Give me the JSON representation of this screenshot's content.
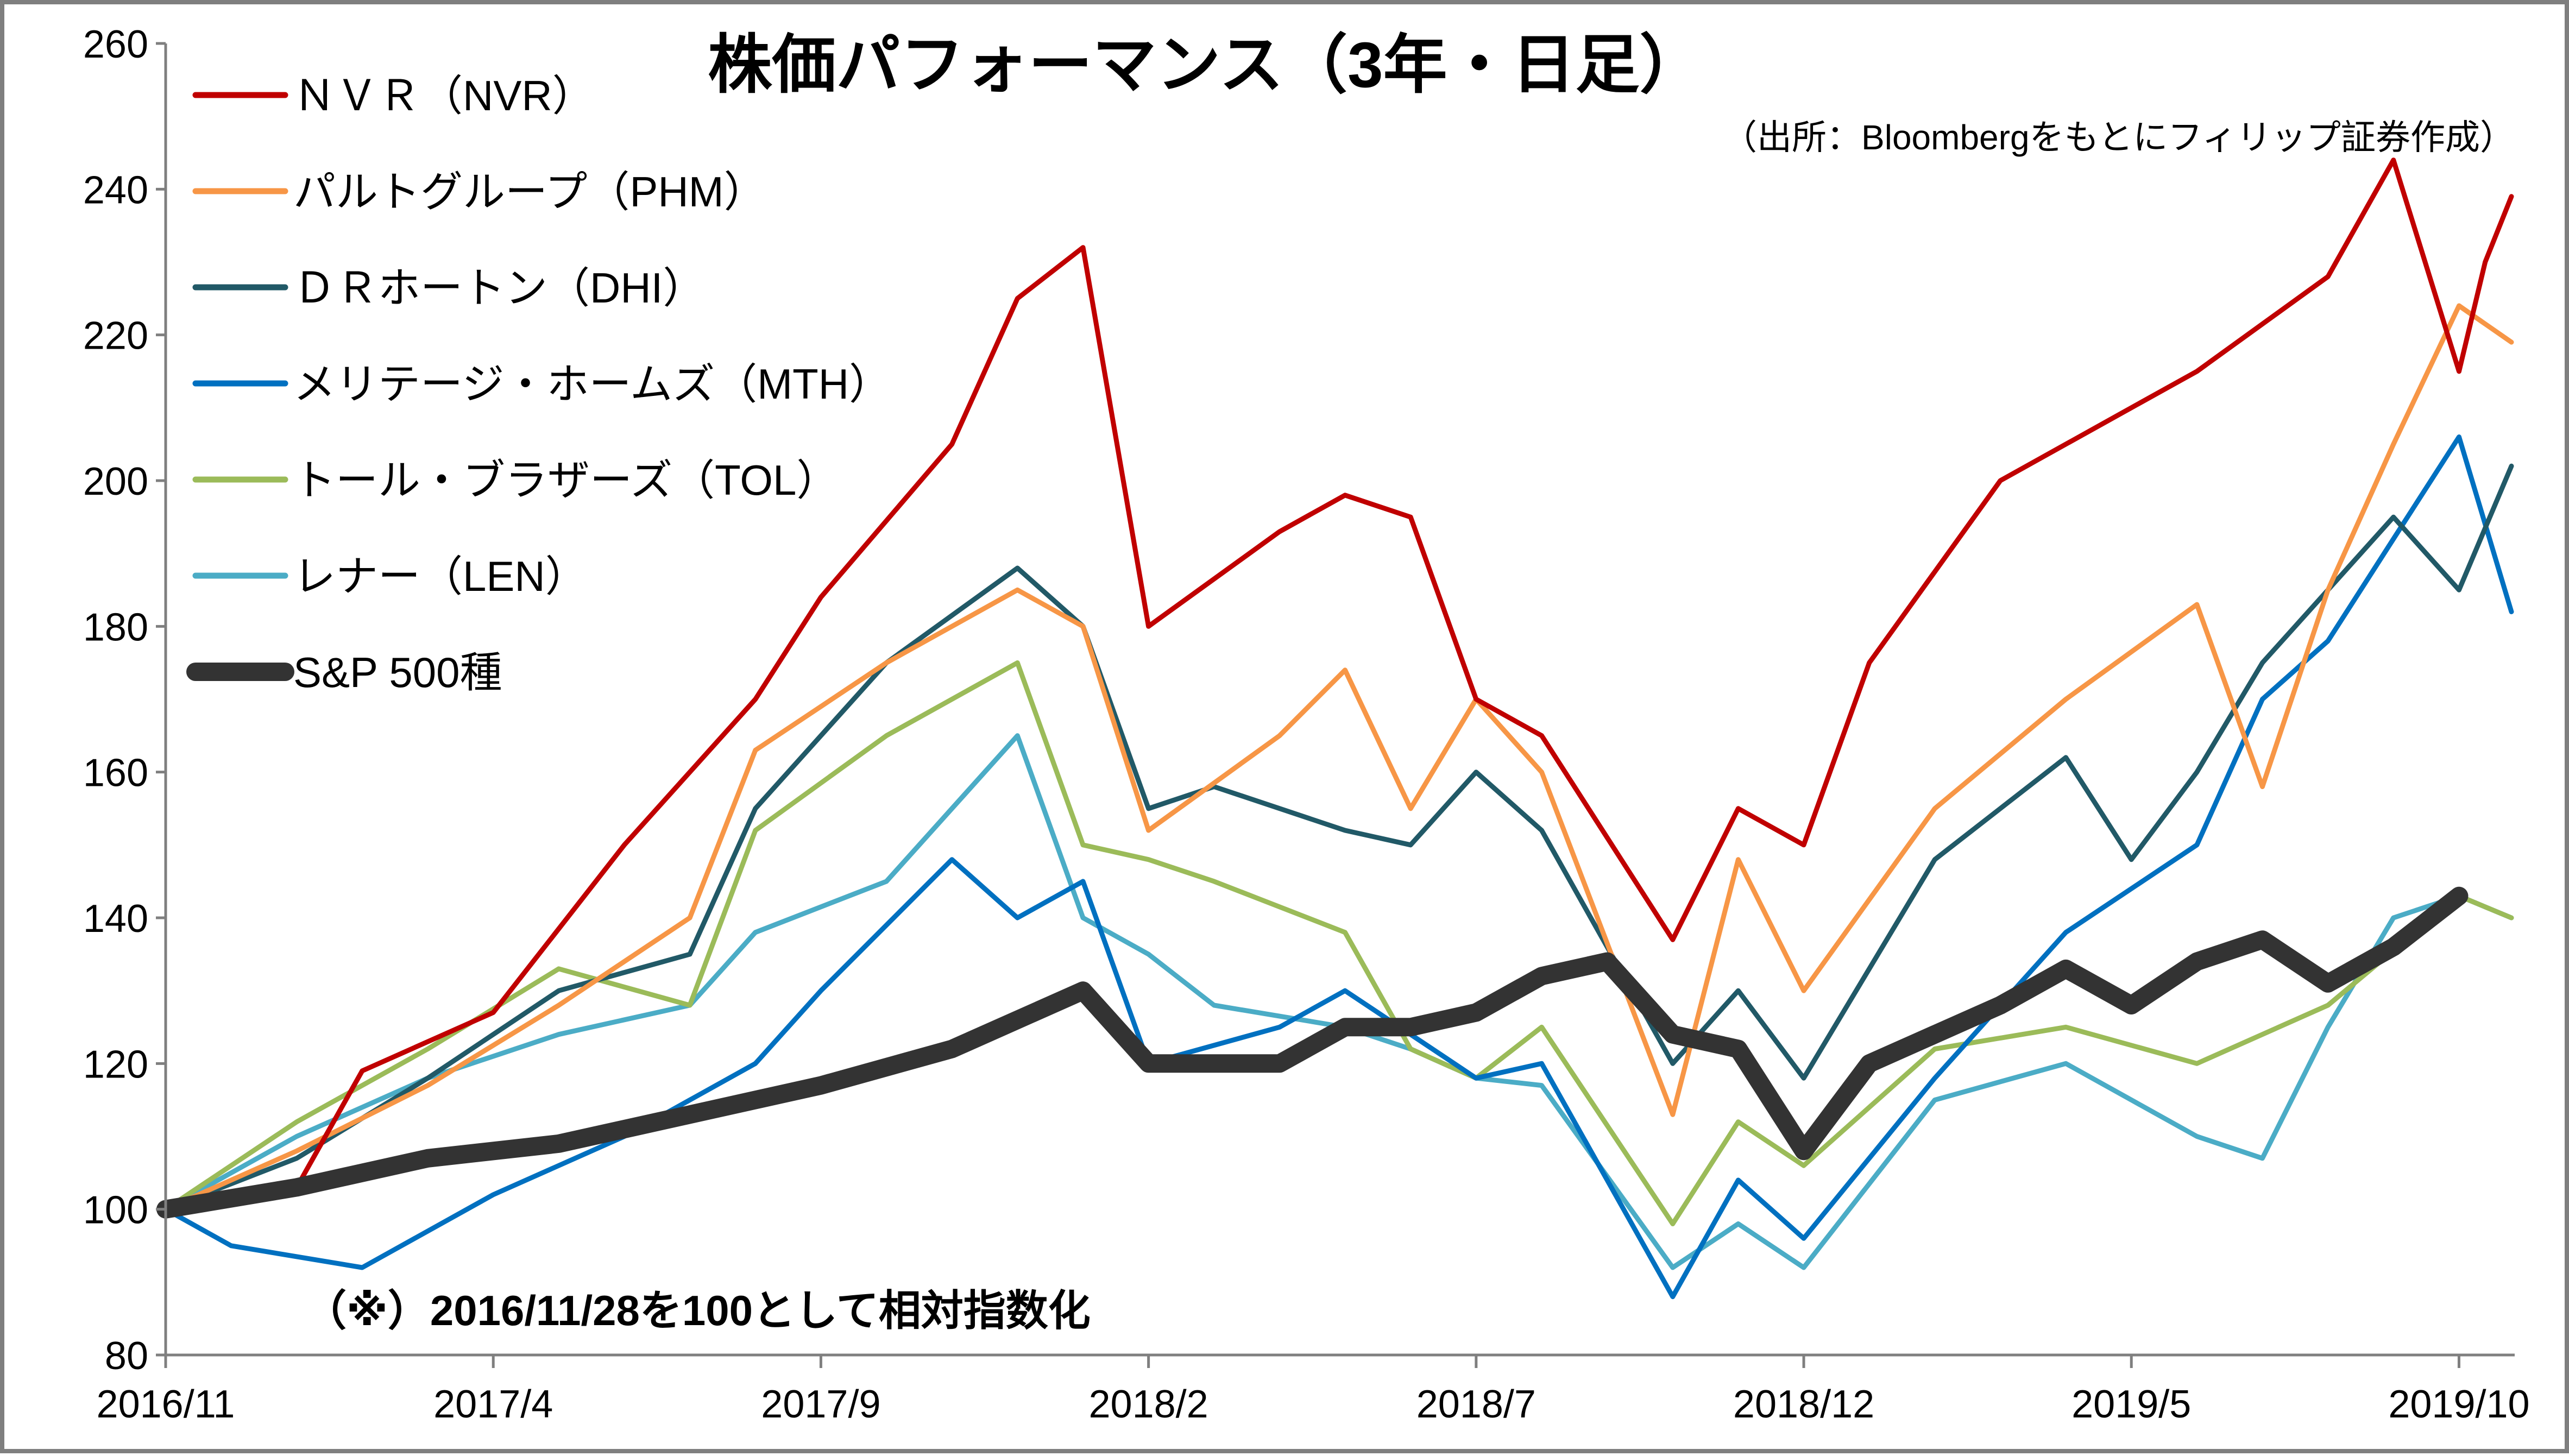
{
  "chart_data": {
    "type": "line",
    "title": "株価パフォーマンス（3年・日足）",
    "source": "（出所：Bloombergをもとにフィリップ証券作成）",
    "note": "（※）2016/11/28を100として相対指数化",
    "ylim": [
      80,
      260
    ],
    "yticks": [
      "80",
      "100",
      "120",
      "140",
      "160",
      "180",
      "200",
      "220",
      "240",
      "260"
    ],
    "xtick_labels": [
      "2016/11",
      "2017/4",
      "2017/9",
      "2018/2",
      "2018/7",
      "2018/12",
      "2019/5",
      "2019/10"
    ],
    "x_range": [
      "2016/11",
      "2019/10"
    ],
    "grid": false,
    "legend_position": "top-left",
    "series": [
      {
        "name": "ＮＶＲ（NVR）",
        "color": "#C00000",
        "x": [
          "2016/11",
          "2017/1",
          "2017/2",
          "2017/4",
          "2017/6",
          "2017/8",
          "2017/9",
          "2017/11",
          "2017/12",
          "2018/1",
          "2018/2",
          "2018/4",
          "2018/5",
          "2018/6",
          "2018/7",
          "2018/8",
          "2018/10",
          "2018/11",
          "2018/12",
          "2019/1",
          "2019/3",
          "2019/5",
          "2019/6",
          "2019/8",
          "2019/9",
          "2019/10",
          "2019/10",
          "2019/10"
        ],
        "values": [
          100,
          103,
          119,
          127,
          150,
          170,
          184,
          205,
          225,
          232,
          180,
          193,
          198,
          195,
          170,
          165,
          137,
          155,
          150,
          175,
          200,
          210,
          215,
          228,
          244,
          215,
          230,
          239
        ]
      },
      {
        "name": "パルトグループ（PHM）",
        "color": "#F79646",
        "x": [
          "2016/11",
          "2017/1",
          "2017/3",
          "2017/5",
          "2017/7",
          "2017/8",
          "2017/10",
          "2017/12",
          "2018/1",
          "2018/2",
          "2018/4",
          "2018/5",
          "2018/6",
          "2018/7",
          "2018/8",
          "2018/10",
          "2018/11",
          "2018/12",
          "2019/2",
          "2019/4",
          "2019/6",
          "2019/7",
          "2019/8",
          "2019/9",
          "2019/10",
          "2019/10"
        ],
        "values": [
          100,
          108,
          117,
          128,
          140,
          163,
          175,
          185,
          180,
          152,
          165,
          174,
          155,
          170,
          160,
          113,
          148,
          130,
          155,
          170,
          183,
          158,
          185,
          205,
          224,
          219
        ]
      },
      {
        "name": "ＤＲホートン（DHI）",
        "color": "#215967",
        "x": [
          "2016/11",
          "2017/1",
          "2017/3",
          "2017/5",
          "2017/7",
          "2017/8",
          "2017/10",
          "2017/12",
          "2018/1",
          "2018/2",
          "2018/3",
          "2018/5",
          "2018/6",
          "2018/7",
          "2018/8",
          "2018/10",
          "2018/11",
          "2018/12",
          "2019/2",
          "2019/4",
          "2019/5",
          "2019/6",
          "2019/7",
          "2019/8",
          "2019/9",
          "2019/10",
          "2019/10"
        ],
        "values": [
          100,
          107,
          118,
          130,
          135,
          155,
          175,
          188,
          180,
          155,
          158,
          152,
          150,
          160,
          152,
          120,
          130,
          118,
          148,
          162,
          148,
          160,
          175,
          185,
          195,
          185,
          202
        ]
      },
      {
        "name": "メリテージ・ホームズ（MTH）",
        "color": "#0070C0",
        "x": [
          "2016/11",
          "2016/12",
          "2017/2",
          "2017/4",
          "2017/6",
          "2017/8",
          "2017/9",
          "2017/11",
          "2017/12",
          "2018/1",
          "2018/2",
          "2018/4",
          "2018/5",
          "2018/6",
          "2018/7",
          "2018/8",
          "2018/10",
          "2018/11",
          "2018/12",
          "2019/2",
          "2019/4",
          "2019/6",
          "2019/7",
          "2019/8",
          "2019/9",
          "2019/10",
          "2019/10"
        ],
        "values": [
          100,
          95,
          92,
          102,
          110,
          120,
          130,
          148,
          140,
          145,
          120,
          125,
          130,
          124,
          118,
          120,
          88,
          104,
          96,
          118,
          138,
          150,
          170,
          178,
          192,
          206,
          182
        ]
      },
      {
        "name": "トール・ブラザーズ（TOL）",
        "color": "#9BBB59",
        "x": [
          "2016/11",
          "2017/1",
          "2017/3",
          "2017/5",
          "2017/7",
          "2017/8",
          "2017/10",
          "2017/12",
          "2018/1",
          "2018/2",
          "2018/3",
          "2018/5",
          "2018/6",
          "2018/7",
          "2018/8",
          "2018/10",
          "2018/11",
          "2018/12",
          "2019/2",
          "2019/4",
          "2019/6",
          "2019/8",
          "2019/10",
          "2019/10"
        ],
        "values": [
          100,
          112,
          122,
          133,
          128,
          152,
          165,
          175,
          150,
          148,
          145,
          138,
          122,
          118,
          125,
          98,
          112,
          106,
          122,
          125,
          120,
          128,
          143,
          140
        ]
      },
      {
        "name": "レナー（LEN）",
        "color": "#4BACC6",
        "x": [
          "2016/11",
          "2017/1",
          "2017/3",
          "2017/5",
          "2017/7",
          "2017/8",
          "2017/10",
          "2017/12",
          "2018/1",
          "2018/2",
          "2018/3",
          "2018/5",
          "2018/6",
          "2018/7",
          "2018/8",
          "2018/10",
          "2018/11",
          "2018/12",
          "2019/2",
          "2019/4",
          "2019/6",
          "2019/7",
          "2019/8",
          "2019/9",
          "2019/10",
          "2019/10"
        ],
        "values": [
          100,
          110,
          118,
          124,
          128,
          138,
          145,
          165,
          140,
          135,
          128,
          125,
          122,
          118,
          117,
          92,
          98,
          92,
          115,
          120,
          110,
          107,
          125,
          140,
          143,
          140
        ]
      },
      {
        "name": "S&P 500種",
        "color": "#333333",
        "x": [
          "2016/11",
          "2017/1",
          "2017/3",
          "2017/5",
          "2017/7",
          "2017/9",
          "2017/11",
          "2018/1",
          "2018/2",
          "2018/4",
          "2018/5",
          "2018/6",
          "2018/7",
          "2018/8",
          "2018/9",
          "2018/10",
          "2018/11",
          "2018/12",
          "2019/1",
          "2019/3",
          "2019/4",
          "2019/5",
          "2019/6",
          "2019/7",
          "2019/8",
          "2019/9",
          "2019/10"
        ],
        "values": [
          100,
          103,
          107,
          109,
          113,
          117,
          122,
          130,
          120,
          120,
          125,
          125,
          127,
          132,
          134,
          124,
          122,
          108,
          120,
          128,
          133,
          128,
          134,
          137,
          131,
          136,
          143
        ]
      }
    ]
  }
}
